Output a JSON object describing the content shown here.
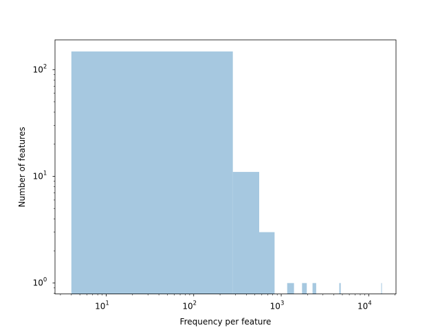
{
  "chart_data": {
    "type": "bar",
    "title": "",
    "xlabel": "Frequency per feature",
    "ylabel": "Number of features",
    "x_scale": "log",
    "y_scale": "log",
    "xlim": [
      2.6,
      20500
    ],
    "ylim": [
      0.79,
      190
    ],
    "grid": false,
    "legend": "none",
    "bar_color": "#a6c8e0",
    "x_ticks": [
      {
        "value": 10,
        "base": "10",
        "exp": "1"
      },
      {
        "value": 100,
        "base": "10",
        "exp": "2"
      },
      {
        "value": 1000,
        "base": "10",
        "exp": "3"
      },
      {
        "value": 10000,
        "base": "10",
        "exp": "4"
      }
    ],
    "y_ticks": [
      {
        "value": 1,
        "base": "10",
        "exp": "0"
      },
      {
        "value": 10,
        "base": "10",
        "exp": "1"
      },
      {
        "value": 100,
        "base": "10",
        "exp": "2"
      }
    ],
    "bins": [
      {
        "x0": 4,
        "x1": 280,
        "count": 148
      },
      {
        "x0": 280,
        "x1": 560,
        "count": 11
      },
      {
        "x0": 560,
        "x1": 840,
        "count": 3
      },
      {
        "x0": 1170,
        "x1": 1400,
        "count": 1
      },
      {
        "x0": 1730,
        "x1": 1960,
        "count": 1
      },
      {
        "x0": 2280,
        "x1": 2510,
        "count": 1
      },
      {
        "x0": 4610,
        "x1": 4790,
        "count": 1
      },
      {
        "x0": 13900,
        "x1": 14100,
        "count": 1
      }
    ]
  }
}
